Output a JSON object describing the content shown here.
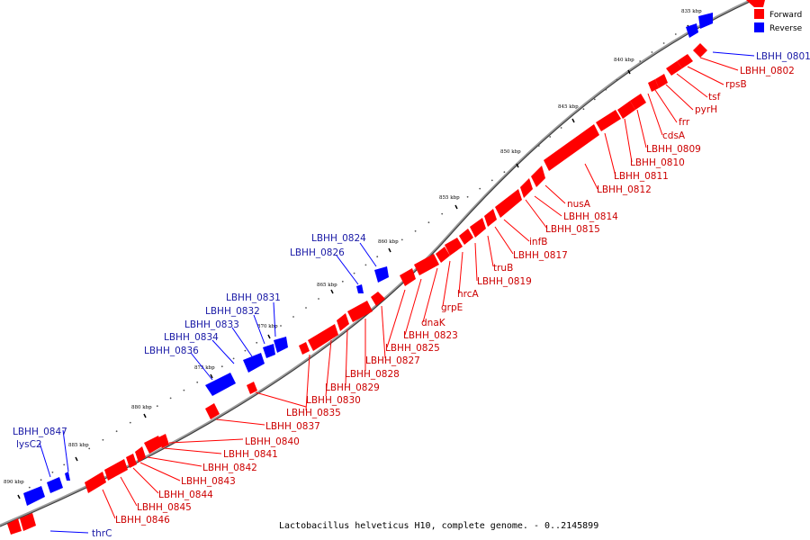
{
  "caption": "Lactobacillus helveticus H10, complete genome. - 0..2145899",
  "legend": [
    {
      "label": "Forward",
      "color": "#ff0000"
    },
    {
      "label": "Reverse",
      "color": "#0000ff"
    }
  ],
  "colors": {
    "forward": "#ff0000",
    "reverse": "#0000ff",
    "forward_label": "#cc0000",
    "reverse_label": "#1a1aa6"
  },
  "ticks": [
    {
      "label": "835 kbp",
      "kbp": 835
    },
    {
      "label": "840 kbp",
      "kbp": 840
    },
    {
      "label": "845 kbp",
      "kbp": 845
    },
    {
      "label": "850 kbp",
      "kbp": 850
    },
    {
      "label": "855 kbp",
      "kbp": 855
    },
    {
      "label": "860 kbp",
      "kbp": 860
    },
    {
      "label": "865 kbp",
      "kbp": 865
    },
    {
      "label": "870 kbp",
      "kbp": 870
    },
    {
      "label": "875 kbp",
      "kbp": 875
    },
    {
      "label": "880 kbp",
      "kbp": 880
    },
    {
      "label": "885 kbp",
      "kbp": 885
    },
    {
      "label": "890 kbp",
      "kbp": 890
    }
  ],
  "forward_genes": [
    {
      "label": "LBHH_0801",
      "strand": "reverse"
    },
    {
      "label": "LBHH_0802",
      "strand": "forward"
    },
    {
      "label": "rpsB",
      "strand": "forward"
    },
    {
      "label": "tsf",
      "strand": "forward"
    },
    {
      "label": "pyrH",
      "strand": "forward"
    },
    {
      "label": "frr",
      "strand": "forward"
    },
    {
      "label": "cdsA",
      "strand": "forward"
    },
    {
      "label": "LBHH_0809",
      "strand": "forward"
    },
    {
      "label": "LBHH_0810",
      "strand": "forward"
    },
    {
      "label": "LBHH_0811",
      "strand": "forward"
    },
    {
      "label": "LBHH_0812",
      "strand": "forward"
    },
    {
      "label": "nusA",
      "strand": "forward"
    },
    {
      "label": "LBHH_0814",
      "strand": "forward"
    },
    {
      "label": "LBHH_0815",
      "strand": "forward"
    },
    {
      "label": "infB",
      "strand": "forward"
    },
    {
      "label": "LBHH_0817",
      "strand": "forward"
    },
    {
      "label": "truB",
      "strand": "forward"
    },
    {
      "label": "LBHH_0819",
      "strand": "forward"
    },
    {
      "label": "hrcA",
      "strand": "forward"
    },
    {
      "label": "grpE",
      "strand": "forward"
    },
    {
      "label": "dnaK",
      "strand": "forward"
    },
    {
      "label": "LBHH_0823",
      "strand": "forward"
    },
    {
      "label": "LBHH_0825",
      "strand": "forward"
    },
    {
      "label": "LBHH_0827",
      "strand": "forward"
    },
    {
      "label": "LBHH_0828",
      "strand": "forward"
    },
    {
      "label": "LBHH_0829",
      "strand": "forward"
    },
    {
      "label": "LBHH_0830",
      "strand": "forward"
    },
    {
      "label": "LBHH_0835",
      "strand": "forward"
    },
    {
      "label": "LBHH_0837",
      "strand": "forward"
    },
    {
      "label": "LBHH_0840",
      "strand": "forward"
    },
    {
      "label": "LBHH_0841",
      "strand": "forward"
    },
    {
      "label": "LBHH_0842",
      "strand": "forward"
    },
    {
      "label": "LBHH_0843",
      "strand": "forward"
    },
    {
      "label": "LBHH_0844",
      "strand": "forward"
    },
    {
      "label": "LBHH_0845",
      "strand": "forward"
    },
    {
      "label": "LBHH_0846",
      "strand": "forward"
    },
    {
      "label": "thrC",
      "strand": "reverse"
    }
  ],
  "reverse_genes": [
    {
      "label": "LBHH_0824"
    },
    {
      "label": "LBHH_0826"
    },
    {
      "label": "LBHH_0831"
    },
    {
      "label": "LBHH_0832"
    },
    {
      "label": "LBHH_0833"
    },
    {
      "label": "LBHH_0834"
    },
    {
      "label": "LBHH_0836"
    },
    {
      "label": "LBHH_0847"
    },
    {
      "label": "lysC2"
    }
  ]
}
